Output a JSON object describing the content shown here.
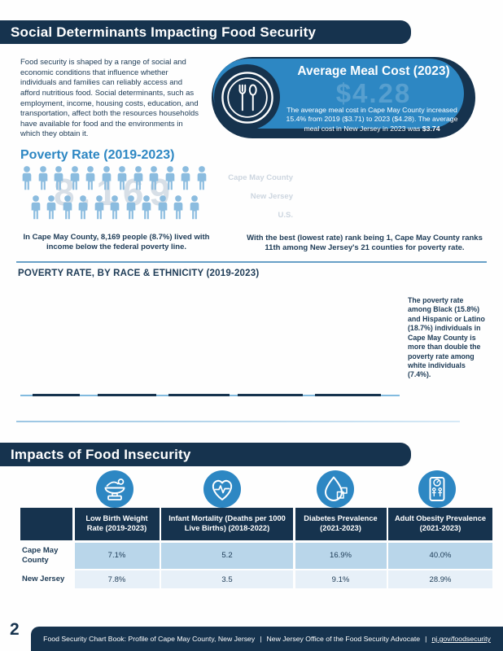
{
  "colors": {
    "navy": "#16334e",
    "accent_blue": "#2d87c3",
    "pictogram_blue": "#8bbcdf",
    "table_row_shaded": "#b9d6ea",
    "table_row_light": "#e7f0f8"
  },
  "header": {
    "title": "Social Determinants Impacting Food Security"
  },
  "intro": "Food security is shaped by a range of social and economic conditions that influence whether individuals and families can reliably access and afford nutritious food. Social determinants, such as employment, income, housing costs, education, and transportation, affect both the resources households have available for food and the environments in which they obtain it.",
  "meal_cost": {
    "title": "Average Meal Cost (2023)",
    "value": "$4.28",
    "desc": "The average meal cost in Cape May County increased 15.4% from 2019 ($3.71) to 2023 ($4.28). The average meal cost in New Jersey in 2023 was ",
    "desc_bold": "$3.74",
    "icon": "fork-spoon-plate-icon"
  },
  "poverty": {
    "title": "Poverty Rate (2019-2023)",
    "watermark": "8,169",
    "pictogram_rows": [
      12,
      11
    ],
    "caption": "In Cape May County, 8,169 people (8.7%) lived with income below the federal poverty line.",
    "rank_labels": [
      "Cape May County",
      "New Jersey",
      "U.S."
    ],
    "rank_caption": "With the best (lowest rate) rank being 1, Cape May County ranks 11th among New Jersey's 21 counties for poverty rate."
  },
  "race_section": {
    "title": "POVERTY RATE, BY RACE & ETHNICITY (2019-2023)",
    "note": "The poverty rate among Black (15.8%) and Hispanic or Latino (18.7%) individuals in Cape May County is more than double the poverty rate among white individuals (7.4%)."
  },
  "impacts": {
    "title": "Impacts of Food Insecurity",
    "table": {
      "columns": [
        {
          "icon": "infant-scale-icon",
          "label": "Low Birth Weight Rate (2019-2023)"
        },
        {
          "icon": "heart-pulse-icon",
          "label": "Infant Mortality (Deaths per 1000 Live Births) (2018-2022)"
        },
        {
          "icon": "diabetes-droplet-icon",
          "label": "Diabetes Prevalence (2021-2023)"
        },
        {
          "icon": "weight-scale-icon",
          "label": "Adult Obesity Prevalence (2021-2023)"
        }
      ],
      "rows": [
        {
          "label": "Cape May County",
          "values": [
            "7.1%",
            "5.2",
            "16.9%",
            "40.0%"
          ]
        },
        {
          "label": "New Jersey",
          "values": [
            "7.8%",
            "3.5",
            "9.1%",
            "28.9%"
          ]
        }
      ]
    }
  },
  "footer": {
    "page_number": "2",
    "book": "Food Security Chart Book: Profile of Cape May County, New Jersey",
    "separator": "|",
    "org": "New Jersey Office of the Food Security Advocate",
    "link": "nj.gov/foodsecurity"
  }
}
